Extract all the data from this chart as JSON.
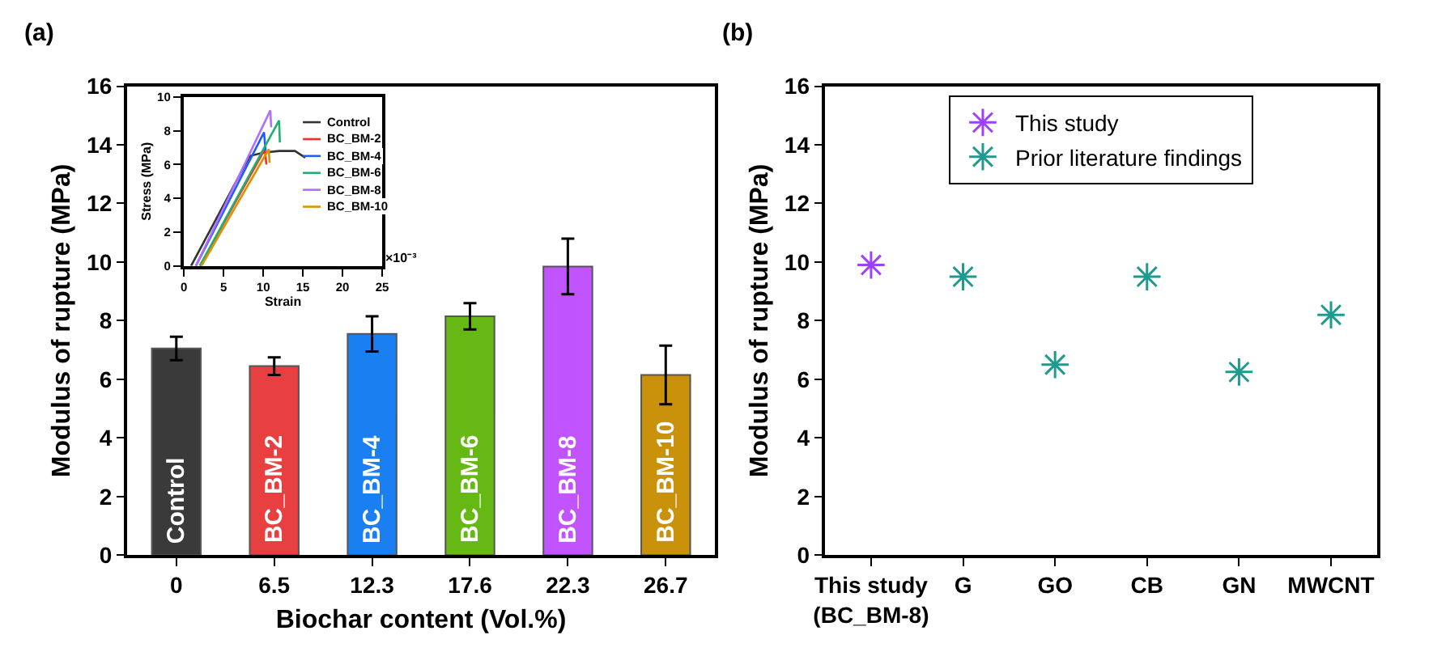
{
  "chart_data": [
    {
      "type": "bar",
      "title": "(a)",
      "xlabel": "Biochar content (Vol.%)",
      "ylabel": "Modulus of rupture (MPa)",
      "categories": [
        "0",
        "6.5",
        "12.3",
        "17.6",
        "22.3",
        "26.7"
      ],
      "values": [
        7.05,
        6.45,
        7.55,
        8.15,
        9.85,
        6.15
      ],
      "errors": [
        0.4,
        0.3,
        0.6,
        0.45,
        0.95,
        1.0
      ],
      "colors": [
        "#3a3a3a",
        "#e84040",
        "#1a7ff0",
        "#66b814",
        "#c154ff",
        "#c9920a"
      ],
      "ylim": [
        0,
        16
      ],
      "yticks": [
        0,
        2,
        4,
        6,
        8,
        10,
        12,
        14,
        16
      ],
      "grid": false,
      "legend": false,
      "annotations": [
        {
          "text": "Control",
          "x": "0",
          "y": 0
        },
        {
          "text": "BC_BM-2",
          "x": "6.5",
          "y": 0
        },
        {
          "text": "BC_BM-4",
          "x": "12.3",
          "y": 0
        },
        {
          "text": "BC_BM-6",
          "x": "17.6",
          "y": 0
        },
        {
          "text": "BC_BM-8",
          "x": "22.3",
          "y": 0
        },
        {
          "text": "BC_BM-10",
          "x": "26.7",
          "y": 0
        }
      ]
    },
    {
      "type": "line",
      "xlabel": "Strain",
      "ylabel": "Stress (MPa)",
      "xlim": [
        0,
        25
      ],
      "xticks": [
        0,
        5,
        10,
        15,
        20,
        25
      ],
      "ylim": [
        0,
        10
      ],
      "yticks": [
        0,
        2,
        4,
        6,
        8,
        10
      ],
      "grid": false,
      "legend": "right",
      "marker": "none",
      "line_style": "solid",
      "annotations": [
        "×10⁻³"
      ],
      "series": [
        {
          "name": "Control",
          "color": "#333333",
          "x": [
            0.9,
            8.3,
            10,
            12,
            14,
            15.3
          ],
          "values": [
            0,
            6.5,
            6.7,
            6.8,
            6.8,
            6.4
          ]
        },
        {
          "name": "BC_BM-2",
          "color": "#ff2a2a",
          "x": [
            2,
            10.2,
            10.4
          ],
          "values": [
            0,
            6.9,
            6.0
          ]
        },
        {
          "name": "BC_BM-4",
          "color": "#1e5cff",
          "x": [
            1.5,
            10.1,
            10.3
          ],
          "values": [
            0,
            7.9,
            6.8
          ]
        },
        {
          "name": "BC_BM-6",
          "color": "#20b070",
          "x": [
            2,
            12.0,
            12.1
          ],
          "values": [
            0,
            8.6,
            7.3
          ]
        },
        {
          "name": "BC_BM-8",
          "color": "#b070ff",
          "x": [
            1.5,
            10.9,
            11.0
          ],
          "values": [
            0,
            9.2,
            8.2
          ]
        },
        {
          "name": "BC_BM-10",
          "color": "#e09000",
          "x": [
            2.2,
            10.7,
            10.8
          ],
          "values": [
            0,
            6.9,
            6.1
          ]
        }
      ]
    },
    {
      "type": "scatter",
      "title": "(b)",
      "ylabel": "Modulus of rupture (MPa)",
      "categories": [
        "This study\n(BC_BM-8)",
        "G",
        "GO",
        "CB",
        "GN",
        "MWCNT"
      ],
      "ylim": [
        0,
        16
      ],
      "yticks": [
        0,
        2,
        4,
        6,
        8,
        10,
        12,
        14,
        16
      ],
      "grid": false,
      "legend": "top",
      "marker": "cross",
      "series": [
        {
          "name": "This study",
          "color": "#a040ff",
          "values": [
            9.9,
            null,
            null,
            null,
            null,
            null
          ]
        },
        {
          "name": "Prior literature findings",
          "color": "#1f9a8f",
          "values": [
            null,
            9.5,
            6.5,
            9.5,
            6.25,
            8.2
          ]
        }
      ]
    }
  ]
}
